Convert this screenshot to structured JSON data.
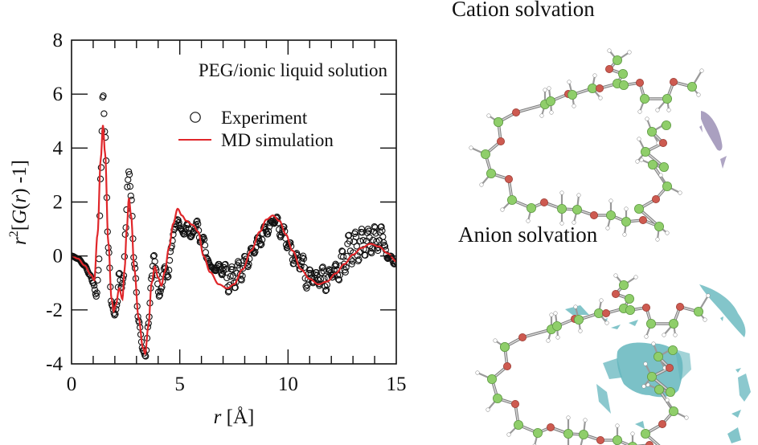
{
  "chart_data": {
    "type": "line",
    "title": "",
    "annotation": "PEG/ionic liquid solution",
    "xlabel_italic": "r",
    "xlabel_rest": " [Å]",
    "ylabel_parts": {
      "r": "r",
      "sup": "2",
      "open": "[",
      "G": "G",
      "paren_r": "(r)",
      "rest": " -1]"
    },
    "xlim": [
      0,
      15
    ],
    "ylim": [
      -4,
      8
    ],
    "xticks": [
      0,
      5,
      10,
      15
    ],
    "yticks": [
      -4,
      -2,
      0,
      2,
      4,
      6,
      8
    ],
    "x_minor_step": 1,
    "grid": false,
    "legend": {
      "position": "top-right",
      "entries": [
        {
          "name": "Experiment",
          "marker": "open-circle",
          "color": "#000000"
        },
        {
          "name": "MD simulation",
          "marker": "line",
          "color": "#e0262a"
        }
      ]
    },
    "series": [
      {
        "name": "MD simulation",
        "color": "#e0262a",
        "points": [
          [
            0,
            0
          ],
          [
            0.3,
            -0.1
          ],
          [
            0.6,
            -0.35
          ],
          [
            0.9,
            -0.7
          ],
          [
            1.05,
            -0.9
          ],
          [
            1.2,
            0.8
          ],
          [
            1.35,
            3.6
          ],
          [
            1.45,
            4.85
          ],
          [
            1.55,
            3.8
          ],
          [
            1.7,
            0.5
          ],
          [
            1.85,
            -1.6
          ],
          [
            1.95,
            -2.05
          ],
          [
            2.05,
            -1.8
          ],
          [
            2.2,
            -1.2
          ],
          [
            2.35,
            -1.6
          ],
          [
            2.45,
            -0.5
          ],
          [
            2.55,
            1.0
          ],
          [
            2.65,
            2.15
          ],
          [
            2.75,
            1.5
          ],
          [
            2.9,
            -0.5
          ],
          [
            3.1,
            -2.3
          ],
          [
            3.3,
            -3.4
          ],
          [
            3.4,
            -3.62
          ],
          [
            3.55,
            -2.6
          ],
          [
            3.7,
            -1.0
          ],
          [
            3.85,
            -0.4
          ],
          [
            4.0,
            -0.8
          ],
          [
            4.15,
            -1.1
          ],
          [
            4.3,
            -0.6
          ],
          [
            4.5,
            0.3
          ],
          [
            4.7,
            1.2
          ],
          [
            4.9,
            1.75
          ],
          [
            5.1,
            1.5
          ],
          [
            5.3,
            1.3
          ],
          [
            5.6,
            1.15
          ],
          [
            5.85,
            0.9
          ],
          [
            6.1,
            0.0
          ],
          [
            6.4,
            -0.6
          ],
          [
            6.8,
            -1.05
          ],
          [
            7.2,
            -1.2
          ],
          [
            7.5,
            -1.05
          ],
          [
            7.9,
            -0.5
          ],
          [
            8.3,
            0.2
          ],
          [
            8.7,
            0.9
          ],
          [
            9.0,
            1.35
          ],
          [
            9.3,
            1.5
          ],
          [
            9.6,
            1.3
          ],
          [
            9.9,
            0.8
          ],
          [
            10.2,
            0.2
          ],
          [
            10.6,
            -0.5
          ],
          [
            11.0,
            -0.85
          ],
          [
            11.4,
            -1.05
          ],
          [
            11.8,
            -0.95
          ],
          [
            12.2,
            -0.65
          ],
          [
            12.6,
            -0.3
          ],
          [
            13.0,
            0.05
          ],
          [
            13.4,
            0.3
          ],
          [
            13.8,
            0.45
          ],
          [
            14.2,
            0.35
          ],
          [
            14.6,
            0.1
          ],
          [
            15.0,
            -0.2
          ]
        ]
      },
      {
        "name": "Experiment",
        "color": "#000000",
        "points": [
          [
            0,
            0
          ],
          [
            0.3,
            -0.1
          ],
          [
            0.6,
            -0.35
          ],
          [
            0.85,
            -0.7
          ],
          [
            1.0,
            -1.0
          ],
          [
            1.15,
            -1.5
          ],
          [
            1.25,
            -0.5
          ],
          [
            1.35,
            3.0
          ],
          [
            1.45,
            6.05
          ],
          [
            1.55,
            4.5
          ],
          [
            1.7,
            0.3
          ],
          [
            1.85,
            -1.8
          ],
          [
            2.0,
            -2.2
          ],
          [
            2.1,
            -1.8
          ],
          [
            2.2,
            -0.6
          ],
          [
            2.3,
            -1.2
          ],
          [
            2.4,
            -0.8
          ],
          [
            2.5,
            1.0
          ],
          [
            2.6,
            2.8
          ],
          [
            2.65,
            3.15
          ],
          [
            2.75,
            2.2
          ],
          [
            2.9,
            -0.3
          ],
          [
            3.1,
            -2.4
          ],
          [
            3.3,
            -3.5
          ],
          [
            3.42,
            -3.72
          ],
          [
            3.55,
            -2.5
          ],
          [
            3.7,
            -0.8
          ],
          [
            3.8,
            0.05
          ],
          [
            3.9,
            -0.5
          ],
          [
            4.05,
            -1.5
          ],
          [
            4.15,
            -1.2
          ],
          [
            4.3,
            -0.4
          ],
          [
            4.45,
            -0.8
          ],
          [
            4.6,
            0.3
          ],
          [
            4.75,
            1.0
          ],
          [
            4.9,
            1.35
          ],
          [
            5.05,
            1.0
          ],
          [
            5.2,
            0.8
          ],
          [
            5.35,
            1.2
          ],
          [
            5.5,
            0.7
          ],
          [
            5.65,
            0.9
          ],
          [
            5.8,
            1.3
          ],
          [
            5.95,
            0.5
          ],
          [
            6.1,
            0.7
          ],
          [
            6.25,
            -0.1
          ],
          [
            6.45,
            -0.4
          ],
          [
            6.65,
            -0.55
          ],
          [
            6.8,
            -0.3
          ],
          [
            6.95,
            -0.7
          ],
          [
            7.1,
            -0.3
          ],
          [
            7.25,
            -1.35
          ],
          [
            7.4,
            -0.4
          ],
          [
            7.55,
            -1.2
          ],
          [
            7.7,
            -0.2
          ],
          [
            7.85,
            -0.9
          ],
          [
            8.0,
            0.0
          ],
          [
            8.15,
            -0.4
          ],
          [
            8.3,
            0.3
          ],
          [
            8.45,
            0.1
          ],
          [
            8.6,
            0.7
          ],
          [
            8.75,
            0.4
          ],
          [
            8.9,
            1.1
          ],
          [
            9.05,
            0.8
          ],
          [
            9.2,
            1.3
          ],
          [
            9.35,
            1.2
          ],
          [
            9.5,
            1.45
          ],
          [
            9.65,
            0.7
          ],
          [
            9.8,
            1.1
          ],
          [
            9.95,
            0.3
          ],
          [
            10.1,
            0.5
          ],
          [
            10.25,
            -0.3
          ],
          [
            10.4,
            0.1
          ],
          [
            10.55,
            -0.5
          ],
          [
            10.7,
            0.0
          ],
          [
            10.85,
            -1.2
          ],
          [
            11.0,
            -0.5
          ],
          [
            11.15,
            -1.0
          ],
          [
            11.3,
            -0.6
          ],
          [
            11.45,
            -1.1
          ],
          [
            11.6,
            -0.4
          ],
          [
            11.75,
            -1.3
          ],
          [
            11.9,
            -0.5
          ],
          [
            12.05,
            -0.8
          ],
          [
            12.2,
            -0.3
          ],
          [
            12.35,
            -0.9
          ],
          [
            12.5,
            0.2
          ],
          [
            12.65,
            -0.6
          ],
          [
            12.8,
            0.8
          ],
          [
            12.95,
            -0.3
          ],
          [
            13.1,
            0.9
          ],
          [
            13.25,
            -0.2
          ],
          [
            13.4,
            1.0
          ],
          [
            13.55,
            0.0
          ],
          [
            13.7,
            1.0
          ],
          [
            13.85,
            0.1
          ],
          [
            14.0,
            1.1
          ],
          [
            14.15,
            0.2
          ],
          [
            14.3,
            1.1
          ],
          [
            14.45,
            0.4
          ],
          [
            14.6,
            -0.1
          ],
          [
            14.75,
            0.0
          ],
          [
            14.9,
            -0.3
          ],
          [
            15.0,
            -0.2
          ]
        ]
      }
    ]
  },
  "panels": {
    "cation_title": "Cation solvation",
    "anion_title": "Anion solvation"
  },
  "colors": {
    "carbon_atom": "#8fce6a",
    "oxygen_atom": "#cd5a50",
    "hydrogen_atom": "#ffffff",
    "bond": "#a9a9a9",
    "cation_isosurface": "#9b8fb5",
    "anion_isosurface": "#64b6bd"
  }
}
